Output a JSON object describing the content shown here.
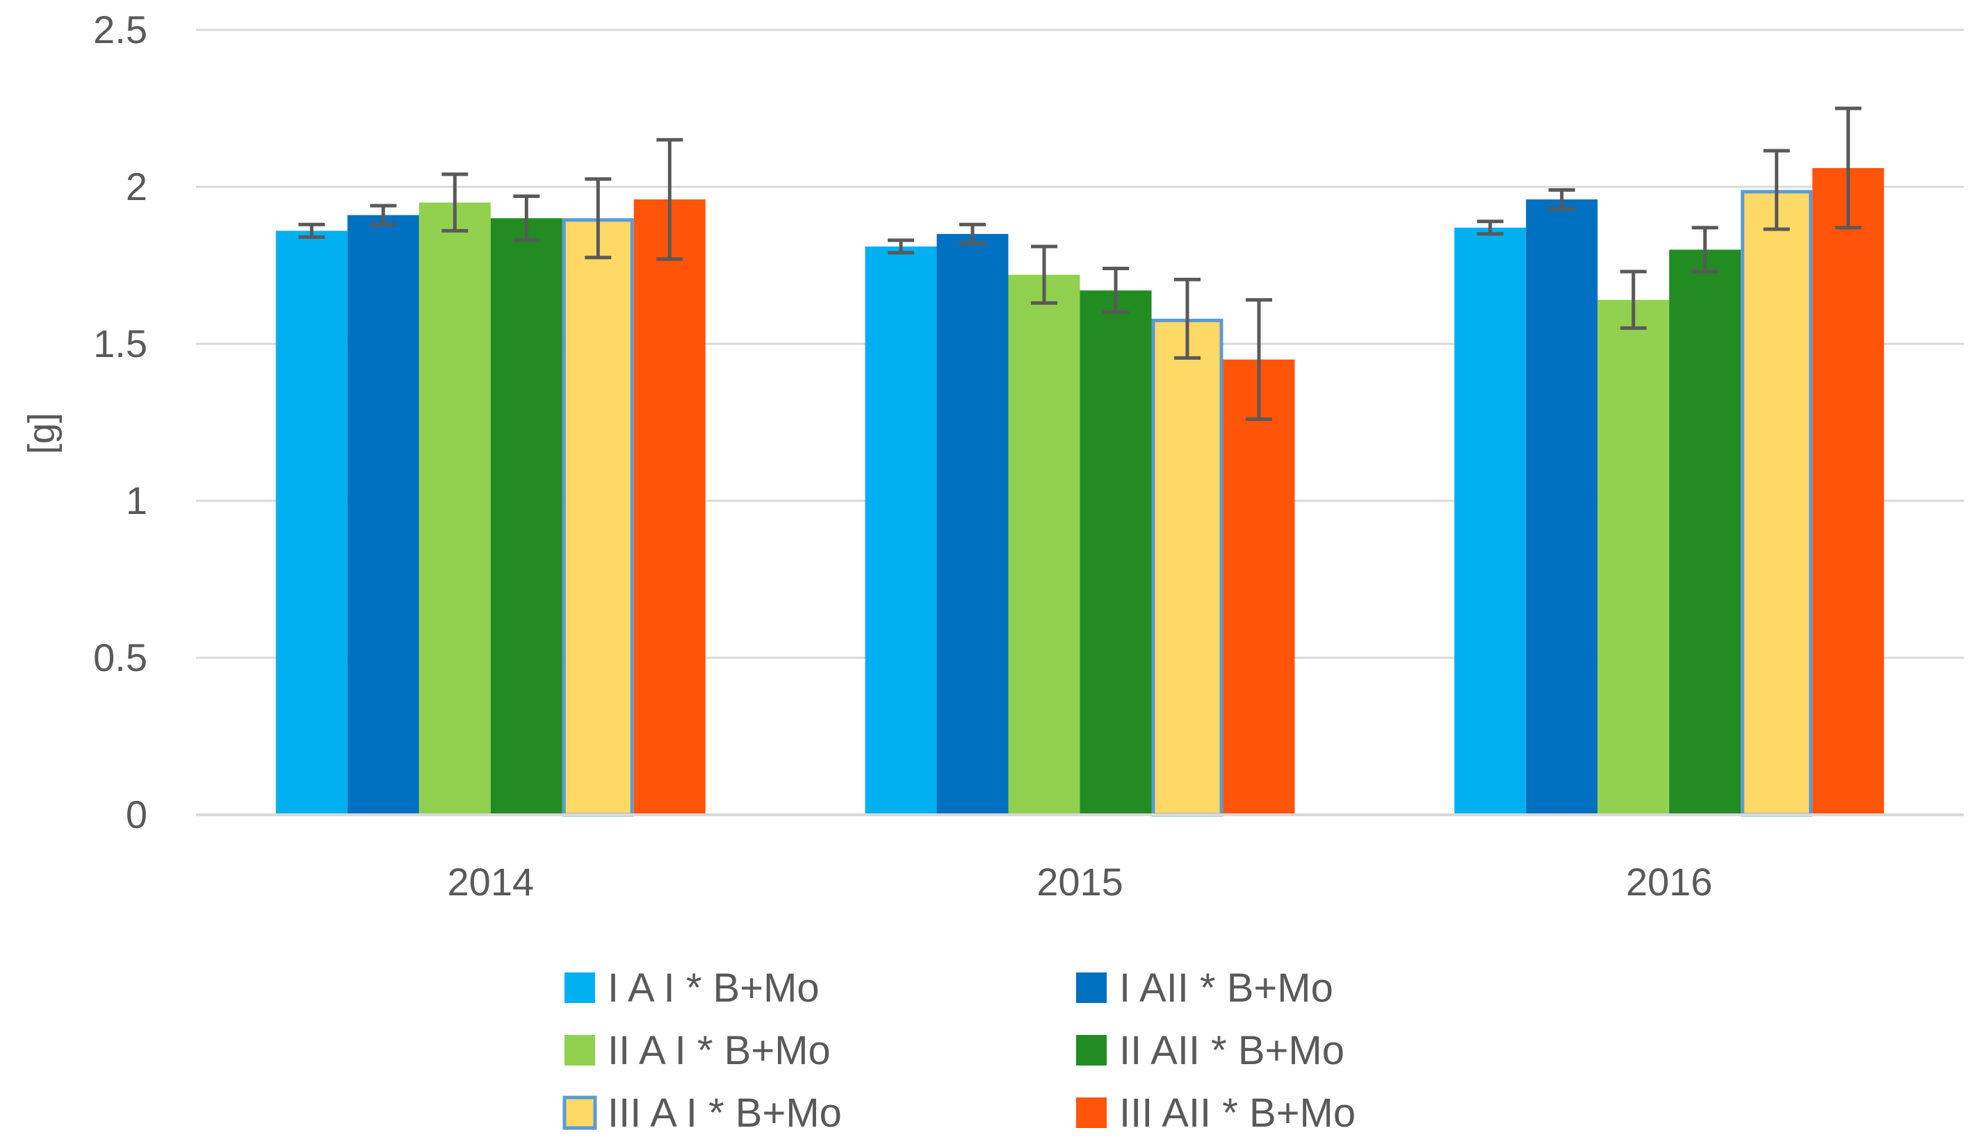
{
  "chart_data": {
    "type": "bar",
    "title": "",
    "xlabel": "",
    "ylabel": "[g]",
    "ylim": [
      0,
      2.5
    ],
    "yticks": [
      "0",
      "0.5",
      "1",
      "1.5",
      "2",
      "2.5"
    ],
    "grid": true,
    "legend_position": "bottom",
    "categories": [
      "2014",
      "2015",
      "2016"
    ],
    "series": [
      {
        "name": "I A I * B+Mo",
        "color": "#00b0f0",
        "values": [
          1.86,
          1.81,
          1.87
        ],
        "errors": [
          0.02,
          0.02,
          0.02
        ]
      },
      {
        "name": "I AII * B+Mo",
        "color": "#0070c0",
        "values": [
          1.91,
          1.85,
          1.96
        ],
        "errors": [
          0.03,
          0.03,
          0.03
        ]
      },
      {
        "name": "II A I * B+Mo",
        "color": "#92d050",
        "values": [
          1.95,
          1.72,
          1.64
        ],
        "errors": [
          0.09,
          0.09,
          0.09
        ]
      },
      {
        "name": "II AII * B+Mo",
        "color": "#228b22",
        "values": [
          1.9,
          1.67,
          1.8
        ],
        "errors": [
          0.07,
          0.07,
          0.07
        ]
      },
      {
        "name": "III A I * B+Mo",
        "color": "#ffd966",
        "border": "#5b9bd5",
        "values": [
          1.9,
          1.58,
          1.99
        ],
        "errors": [
          0.125,
          0.125,
          0.125
        ]
      },
      {
        "name": "III AII * B+Mo",
        "color": "#ff5409",
        "values": [
          1.96,
          1.45,
          2.06
        ],
        "errors": [
          0.19,
          0.19,
          0.19
        ]
      }
    ]
  }
}
